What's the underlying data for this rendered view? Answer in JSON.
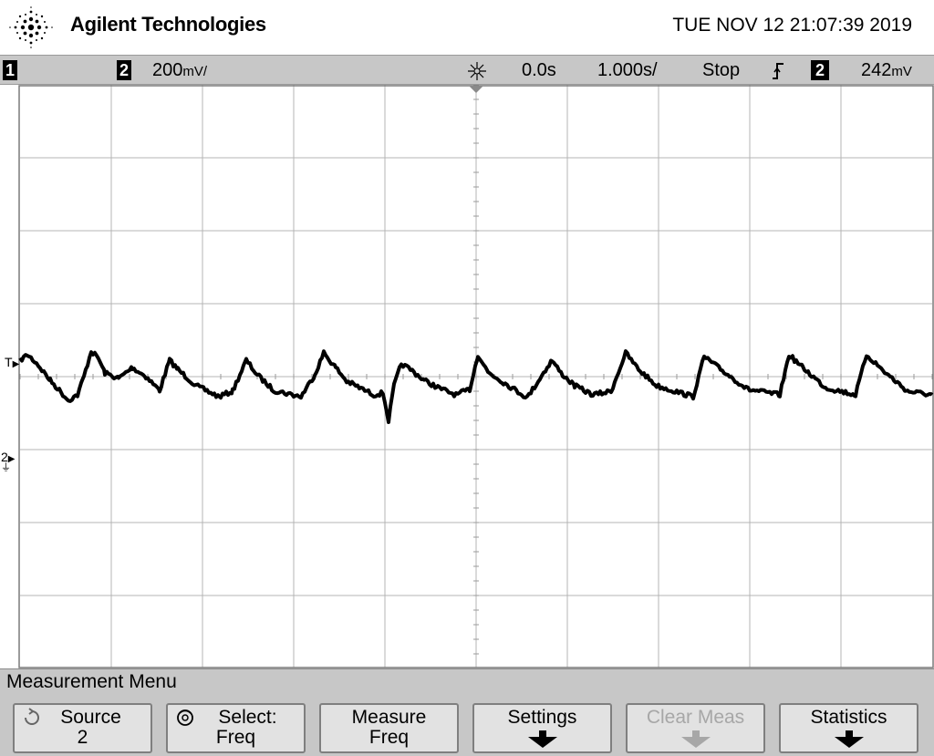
{
  "header": {
    "brand": "Agilent Technologies",
    "datetime": "TUE NOV 12 21:07:39 2019",
    "logo_icon": "agilent-spark-icon"
  },
  "statusbar": {
    "channel1_label": "1",
    "channel2_label": "2",
    "channel2_scale": "200",
    "channel2_unit": "mV/",
    "trigger_position": "0.0s",
    "timebase": "1.000s/",
    "run_state": "Stop",
    "trigger_slope_icon": "rising-edge-icon",
    "trigger_source": "2",
    "trigger_level": "242",
    "trigger_level_unit": "mV"
  },
  "screen": {
    "trigger_marker": "T",
    "channel2_ground_marker": "2",
    "trace_color": "#000000",
    "grid_color": "#b4b4b4"
  },
  "menu": {
    "title": "Measurement Menu",
    "softkeys": [
      {
        "line1": "Source",
        "line2": "2",
        "icon": "rotate-knob-icon"
      },
      {
        "line1": "Select:",
        "line2": "Freq",
        "icon": "rotate-knob-icon"
      },
      {
        "line1": "Measure",
        "line2": "Freq"
      },
      {
        "line1": "Settings",
        "icon": "down-arrow-icon"
      },
      {
        "line1": "Clear Meas",
        "icon": "down-arrow-icon",
        "disabled": true
      },
      {
        "line1": "Statistics",
        "icon": "down-arrow-icon"
      }
    ]
  }
}
